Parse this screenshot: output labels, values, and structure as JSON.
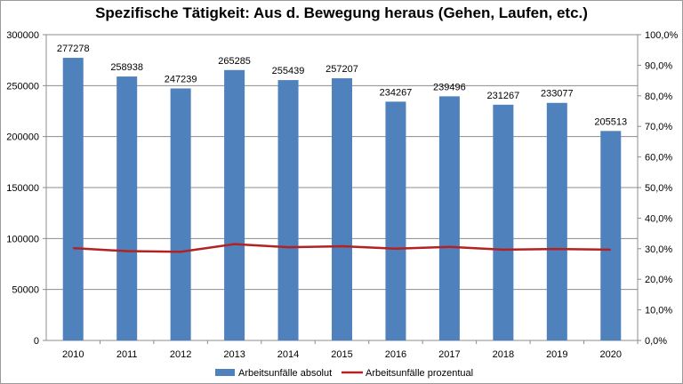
{
  "chart_data": {
    "type": "bar",
    "title": "Spezifische Tätigkeit: Aus d. Bewegung heraus (Gehen, Laufen, etc.)",
    "categories": [
      "2010",
      "2011",
      "2012",
      "2013",
      "2014",
      "2015",
      "2016",
      "2017",
      "2018",
      "2019",
      "2020"
    ],
    "series": [
      {
        "name": "Arbeitsunfälle absolut",
        "type": "bar",
        "axis": "left",
        "color": "#4f81bd",
        "values": [
          277278,
          258938,
          247239,
          265285,
          255439,
          257207,
          234267,
          239496,
          231267,
          233077,
          205513
        ],
        "labels": [
          "277278",
          "258938",
          "247239",
          "265285",
          "255439",
          "257207",
          "234267",
          "239496",
          "231267",
          "233077",
          "205513"
        ]
      },
      {
        "name": "Arbeitsunfälle prozentual",
        "type": "line",
        "axis": "right",
        "color": "#b22222",
        "values": [
          0.302,
          0.292,
          0.29,
          0.315,
          0.305,
          0.308,
          0.3,
          0.306,
          0.297,
          0.299,
          0.297
        ]
      }
    ],
    "y_left": {
      "min": 0,
      "max": 300000,
      "ticks": [
        0,
        50000,
        100000,
        150000,
        200000,
        250000,
        300000
      ],
      "tick_labels": [
        "0",
        "50000",
        "100000",
        "150000",
        "200000",
        "250000",
        "300000"
      ]
    },
    "y_right": {
      "min": 0,
      "max": 1,
      "ticks": [
        0,
        0.1,
        0.2,
        0.3,
        0.4,
        0.5,
        0.6,
        0.7,
        0.8,
        0.9,
        1.0
      ],
      "tick_labels": [
        "0,0%",
        "10,0%",
        "20,0%",
        "30,0%",
        "40,0%",
        "50,0%",
        "60,0%",
        "70,0%",
        "80,0%",
        "90,0%",
        "100,0%"
      ]
    },
    "grid": true,
    "legend_position": "bottom"
  }
}
